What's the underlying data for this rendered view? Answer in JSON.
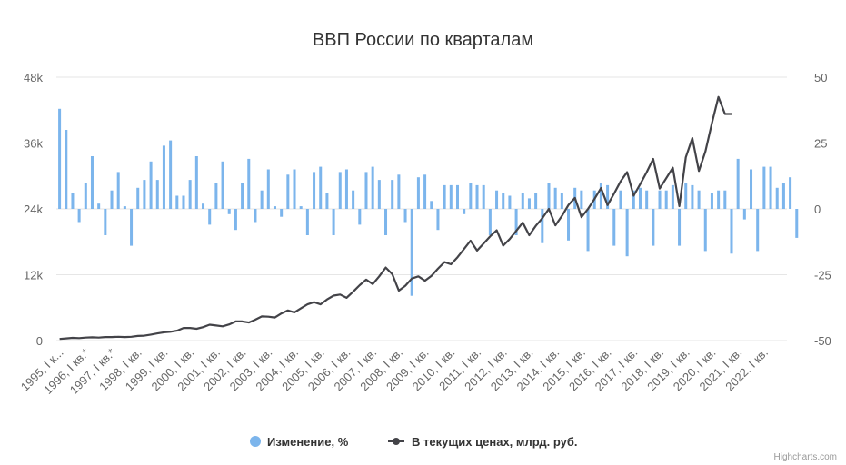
{
  "chart_data": {
    "type": "bar+line",
    "title": "ВВП России по кварталам",
    "credits": "Highcharts.com",
    "left_axis": {
      "ylim": [
        0,
        48000
      ],
      "ticks": [
        "0",
        "12k",
        "24k",
        "36k",
        "48k"
      ]
    },
    "right_axis": {
      "ylim": [
        -50,
        50
      ],
      "ticks": [
        "-50",
        "-25",
        "0",
        "25",
        "50"
      ]
    },
    "x_tick_labels": [
      "1995, I к...",
      "1996, I кв.*",
      "1997, I кв.*",
      "1998, I кв.",
      "1999, I кв.",
      "2000, I кв.",
      "2001, I кв.",
      "2002, I кв.",
      "2003, I кв.",
      "2004, I кв.",
      "2005, I кв.",
      "2006, I кв.",
      "2007, I кв.",
      "2008, I кв.",
      "2009, I кв.",
      "2010, I кв.",
      "2011, I кв.",
      "2012, I кв.",
      "2013, I кв.",
      "2014, I кв.",
      "2015, I кв.",
      "2016, I кв.",
      "2017, I кв.",
      "2018, I кв.",
      "2019, I кв.",
      "2020, I кв.",
      "2021, I кв.",
      "2022, I кв."
    ],
    "quarters_per_year": 4,
    "grid": true,
    "legend_position": "bottom-center",
    "series": [
      {
        "name": "Изменение, %",
        "type": "column",
        "axis": "right",
        "color": "#7cb5ec",
        "values": [
          38,
          30,
          6,
          -5,
          10,
          20,
          2,
          -10,
          7,
          14,
          1,
          -14,
          8,
          11,
          18,
          11,
          24,
          26,
          5,
          5,
          11,
          20,
          2,
          -6,
          10,
          18,
          -2,
          -8,
          10,
          19,
          -5,
          7,
          15,
          1,
          -3,
          13,
          15,
          1,
          -10,
          14,
          16,
          6,
          -10,
          14,
          15,
          7,
          -6,
          14,
          16,
          11,
          -10,
          11,
          13,
          -5,
          -33,
          12,
          13,
          3,
          -8,
          9,
          9,
          9,
          -2,
          10,
          9,
          9,
          -10,
          7,
          6,
          5,
          -10,
          6,
          4,
          6,
          -13,
          10,
          8,
          6,
          -12,
          8,
          7,
          -16,
          7,
          10,
          9,
          -14,
          7,
          -18,
          7,
          8,
          7,
          -14,
          7,
          7,
          9,
          -14,
          10,
          9,
          7,
          -16,
          6,
          7,
          7,
          -17,
          19,
          -4,
          15,
          -16,
          16,
          16,
          8,
          10,
          12,
          -11
        ],
        "x_offset_quarters": 0
      },
      {
        "name": "В текущих ценах, млрд. руб.",
        "type": "line",
        "axis": "left",
        "color": "#434348",
        "values": [
          300,
          400,
          500,
          450,
          550,
          600,
          550,
          650,
          650,
          700,
          650,
          700,
          850,
          900,
          1100,
          1300,
          1500,
          1600,
          1800,
          2300,
          2300,
          2150,
          2450,
          2900,
          2750,
          2600,
          2950,
          3500,
          3500,
          3300,
          3800,
          4400,
          4350,
          4200,
          4950,
          5500,
          5150,
          5900,
          6600,
          7000,
          6600,
          7500,
          8200,
          8400,
          7800,
          8900,
          10100,
          11100,
          10300,
          11700,
          13300,
          12100,
          9100,
          10000,
          11300,
          11700,
          10900,
          11800,
          13100,
          14300,
          13900,
          15200,
          16700,
          18200,
          16400,
          17700,
          19000,
          20100,
          17300,
          18500,
          20000,
          21500,
          19200,
          20900,
          22300,
          24000,
          21000,
          22700,
          24700,
          26000,
          22500,
          24000,
          25800,
          27800,
          24700,
          26800,
          29000,
          30700,
          26400,
          28500,
          30700,
          33100,
          27700,
          29600,
          31500,
          24500,
          33400,
          36900,
          30900,
          34500,
          39600,
          44400,
          41300,
          41300
        ],
        "x_offset_quarters": 0
      }
    ]
  }
}
